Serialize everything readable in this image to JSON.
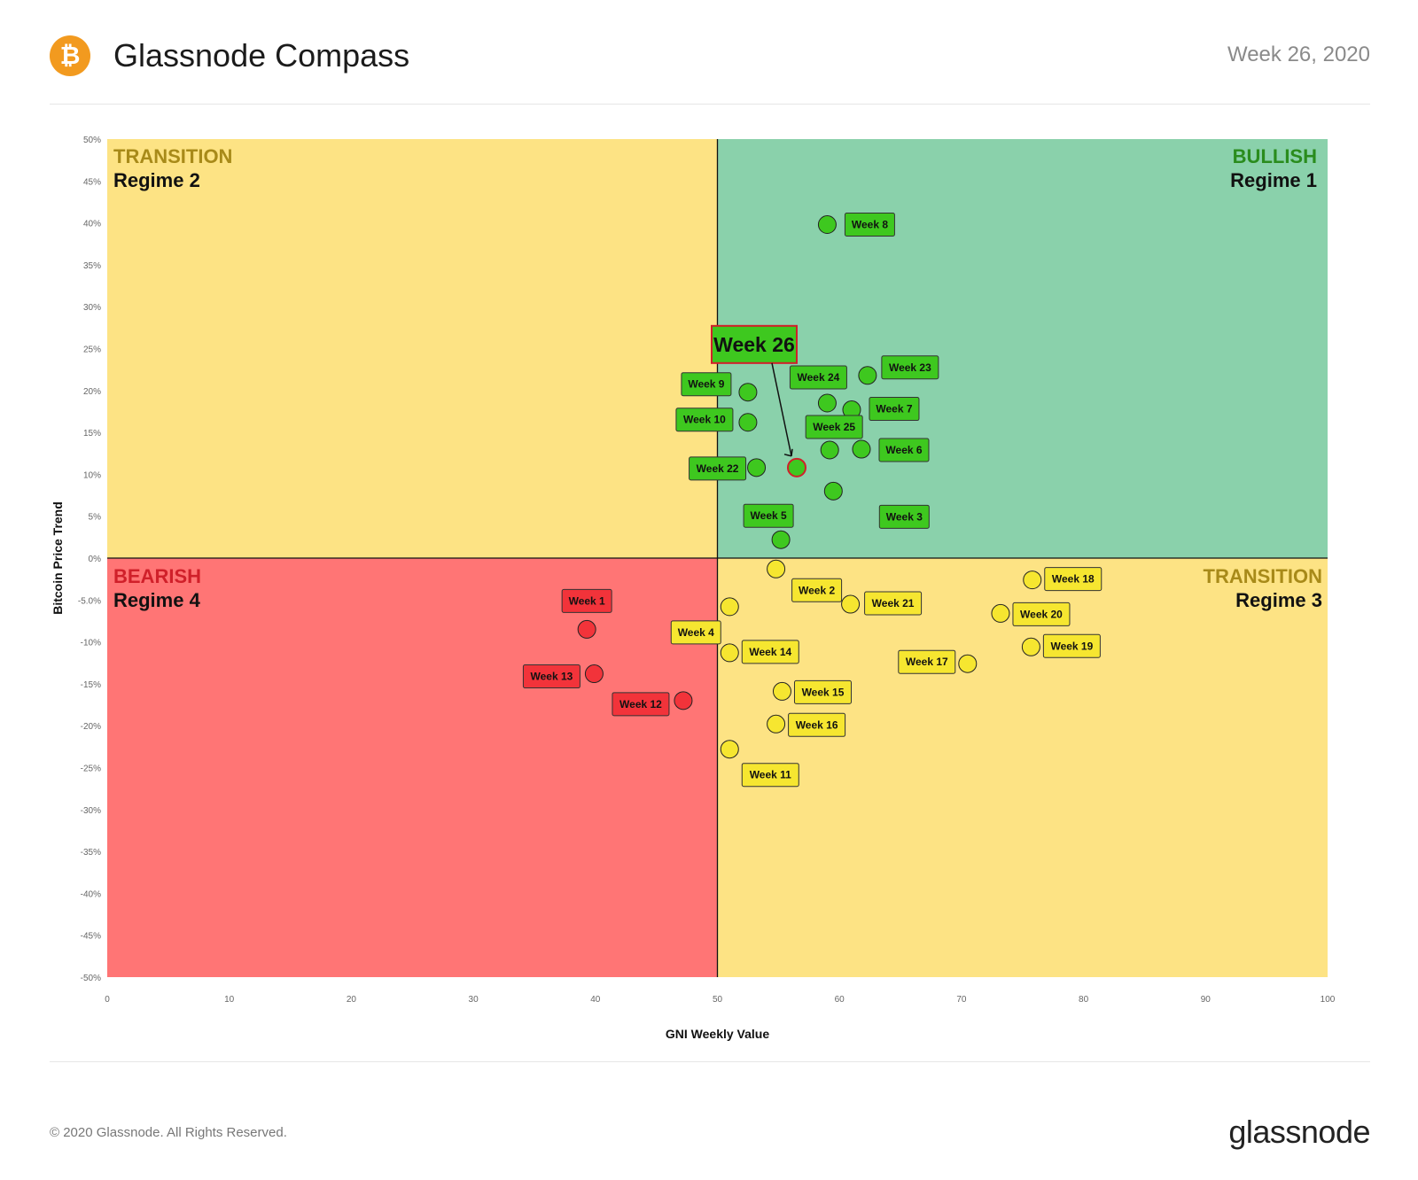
{
  "header": {
    "title": "Glassnode Compass",
    "date": "Week 26, 2020",
    "logo_symbol": "₿",
    "logo_color": "#f29a1f"
  },
  "footer": {
    "copyright": "© 2020 Glassnode. All Rights Reserved.",
    "brand": "glassnode"
  },
  "colors": {
    "bullish_region": "#8ad1ab",
    "transition_region": "#fde384",
    "bearish_region": "#ff7575",
    "green_point": "#3ec81f",
    "yellow_point": "#f6e630",
    "red_point": "#f2333a"
  },
  "chart_data": {
    "type": "scatter",
    "xlabel": "GNI  Weekly Value",
    "ylabel": "Bitcoin  Price Trend",
    "xlim": [
      0,
      100
    ],
    "ylim": [
      -50,
      50
    ],
    "x_ticks": [
      "0",
      "10",
      "20",
      "30",
      "40",
      "50",
      "60",
      "70",
      "80",
      "90",
      "100"
    ],
    "y_ticks": [
      "50%",
      "45%",
      "40%",
      "35%",
      "30%",
      "25%",
      "20%",
      "15%",
      "10%",
      "5%",
      "0%",
      "-5.0%",
      "-10%",
      "-15%",
      "-20%",
      "-25%",
      "-30%",
      "-35%",
      "-40%",
      "-45%",
      "-50%"
    ],
    "regions": [
      {
        "title": "BULLISH",
        "subtitle": "Regime 1",
        "title_color": "#2a8c1d"
      },
      {
        "title": "TRANSITION",
        "subtitle": "Regime 2",
        "title_color": "#a88a19"
      },
      {
        "title": "TRANSITION",
        "subtitle": "Regime 3",
        "title_color": "#a88a19"
      },
      {
        "title": "BEARISH",
        "subtitle": "Regime 4",
        "title_color": "#d0202a"
      }
    ],
    "points": [
      {
        "name": "Week 1",
        "x": 39.3,
        "y": -8.5,
        "color": "red"
      },
      {
        "name": "Week 2",
        "x": 54.8,
        "y": -1.3,
        "color": "yellow"
      },
      {
        "name": "Week 3",
        "x": 59.5,
        "y": 8.0,
        "color": "green"
      },
      {
        "name": "Week 4",
        "x": 51.0,
        "y": -5.8,
        "color": "yellow"
      },
      {
        "name": "Week 5",
        "x": 55.2,
        "y": 2.2,
        "color": "green"
      },
      {
        "name": "Week 6",
        "x": 61.8,
        "y": 13.0,
        "color": "green"
      },
      {
        "name": "Week 7",
        "x": 61.0,
        "y": 17.7,
        "color": "green"
      },
      {
        "name": "Week 8",
        "x": 59.0,
        "y": 39.8,
        "color": "green"
      },
      {
        "name": "Week 9",
        "x": 52.5,
        "y": 19.8,
        "color": "green"
      },
      {
        "name": "Week 10",
        "x": 52.5,
        "y": 16.2,
        "color": "green"
      },
      {
        "name": "Week 11",
        "x": 51.0,
        "y": -22.8,
        "color": "yellow"
      },
      {
        "name": "Week 12",
        "x": 47.2,
        "y": -17.0,
        "color": "red"
      },
      {
        "name": "Week 13",
        "x": 39.9,
        "y": -13.8,
        "color": "red"
      },
      {
        "name": "Week 14",
        "x": 51.0,
        "y": -11.3,
        "color": "yellow"
      },
      {
        "name": "Week 15",
        "x": 55.3,
        "y": -15.9,
        "color": "yellow"
      },
      {
        "name": "Week 16",
        "x": 54.8,
        "y": -19.8,
        "color": "yellow"
      },
      {
        "name": "Week 17",
        "x": 70.5,
        "y": -12.6,
        "color": "yellow"
      },
      {
        "name": "Week 18",
        "x": 75.8,
        "y": -2.6,
        "color": "yellow"
      },
      {
        "name": "Week 19",
        "x": 75.7,
        "y": -10.6,
        "color": "yellow"
      },
      {
        "name": "Week 20",
        "x": 73.2,
        "y": -6.6,
        "color": "yellow"
      },
      {
        "name": "Week 21",
        "x": 60.9,
        "y": -5.5,
        "color": "yellow"
      },
      {
        "name": "Week 22",
        "x": 53.2,
        "y": 10.8,
        "color": "green"
      },
      {
        "name": "Week 23",
        "x": 62.3,
        "y": 21.8,
        "color": "green"
      },
      {
        "name": "Week 24",
        "x": 59.0,
        "y": 18.5,
        "color": "green"
      },
      {
        "name": "Week 25",
        "x": 59.2,
        "y": 12.9,
        "color": "green"
      },
      {
        "name": "Week 26",
        "x": 56.5,
        "y": 10.8,
        "color": "green",
        "highlight": true
      }
    ]
  }
}
